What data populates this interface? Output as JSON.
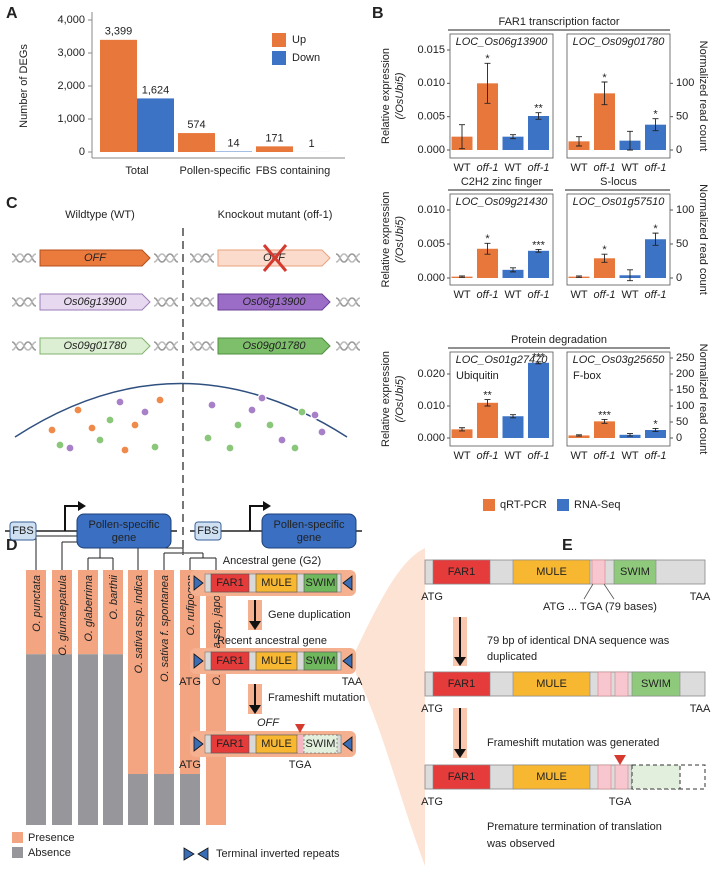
{
  "panel_labels": [
    "A",
    "B",
    "C",
    "D",
    "E"
  ],
  "chart_data": [
    {
      "type": "bar",
      "ylabel": "Number of DEGs",
      "categories": [
        "Total",
        "Pollen-specific",
        "FBS containing"
      ],
      "series": [
        {
          "name": "Up",
          "color": "#e8773b",
          "values": [
            3399,
            574,
            171
          ],
          "value_labels": [
            "3,399",
            "574",
            "171"
          ]
        },
        {
          "name": "Down",
          "color": "#3d73c4",
          "values": [
            1624,
            14,
            1
          ],
          "value_labels": [
            "1,624",
            "14",
            "1"
          ]
        }
      ],
      "ylim": [
        0,
        4000
      ],
      "yticks": [
        0,
        {
          "value": 1000,
          "label": "1,000"
        },
        {
          "value": 2000,
          "label": "2,000"
        },
        {
          "value": 3000,
          "label": "3,000"
        },
        {
          "value": 4000,
          "label": "4,000"
        }
      ]
    },
    {
      "type": "dual_axis_bar",
      "rows": [
        {
          "title": "FAR1 transcription factor",
          "ylabel": [
            "Relative expression",
            "(/OsUbi5)"
          ],
          "y2label": "Normalized read count",
          "ylim": [
            0,
            0.015
          ],
          "yticks": [
            {
              "value": 0,
              "label": "0.000"
            },
            {
              "value": 0.005,
              "label": "0.005"
            },
            {
              "value": 0.01,
              "label": "0.010"
            },
            {
              "value": 0.015,
              "label": "0.015"
            }
          ],
          "y2lim": [
            0,
            150
          ],
          "y2ticks": [
            0,
            50,
            100
          ],
          "subplots": [
            {
              "gene": "LOC_Os06g13900",
              "series": [
                {
                  "name": "qRT-PCR",
                  "color": "#e8773b",
                  "axis": "y",
                  "categories": [
                    "WT",
                    "off-1"
                  ],
                  "values": [
                    0.002,
                    0.01
                  ],
                  "errors": [
                    0.0018,
                    0.003
                  ],
                  "stars": [
                    null,
                    "*"
                  ]
                },
                {
                  "name": "RNA-Seq",
                  "color": "#3d73c4",
                  "axis": "y2",
                  "categories": [
                    "WT",
                    "off-1"
                  ],
                  "values": [
                    20,
                    51
                  ],
                  "errors": [
                    3,
                    5
                  ],
                  "stars": [
                    null,
                    "**"
                  ]
                }
              ]
            },
            {
              "gene": "LOC_Os09g01780",
              "series": [
                {
                  "name": "qRT-PCR",
                  "color": "#e8773b",
                  "axis": "y",
                  "categories": [
                    "WT",
                    "off-1"
                  ],
                  "values": [
                    0.0013,
                    0.0085
                  ],
                  "errors": [
                    0.0007,
                    0.0017
                  ],
                  "stars": [
                    null,
                    "*"
                  ]
                },
                {
                  "name": "RNA-Seq",
                  "color": "#3d73c4",
                  "axis": "y2",
                  "categories": [
                    "WT",
                    "off-1"
                  ],
                  "values": [
                    14,
                    38
                  ],
                  "errors": [
                    14,
                    9
                  ],
                  "stars": [
                    null,
                    "*"
                  ]
                }
              ]
            }
          ]
        },
        {
          "ylabel": [
            "Relative expression",
            "(/OsUbi5)"
          ],
          "y2label": "Normalized read count",
          "ylim": [
            0,
            0.01
          ],
          "yticks": [
            {
              "value": 0,
              "label": "0.000"
            },
            {
              "value": 0.005,
              "label": "0.005"
            },
            {
              "value": 0.01,
              "label": "0.010"
            }
          ],
          "y2lim": [
            0,
            100
          ],
          "y2ticks": [
            0,
            50,
            100
          ],
          "subplots": [
            {
              "title": "C2H2 zinc finger",
              "gene": "LOC_Os09g21430",
              "series": [
                {
                  "name": "qRT-PCR",
                  "color": "#e8773b",
                  "axis": "y",
                  "categories": [
                    "WT",
                    "off-1"
                  ],
                  "values": [
                    0.0002,
                    0.0043
                  ],
                  "errors": [
                    0.0001,
                    0.0008
                  ],
                  "stars": [
                    null,
                    "*"
                  ]
                },
                {
                  "name": "RNA-Seq",
                  "color": "#3d73c4",
                  "axis": "y2",
                  "categories": [
                    "WT",
                    "off-1"
                  ],
                  "values": [
                    12,
                    40
                  ],
                  "errors": [
                    3,
                    2
                  ],
                  "stars": [
                    null,
                    "***"
                  ]
                }
              ]
            },
            {
              "title": "S-locus",
              "gene": "LOC_Os01g57510",
              "series": [
                {
                  "name": "qRT-PCR",
                  "color": "#e8773b",
                  "axis": "y",
                  "categories": [
                    "WT",
                    "off-1"
                  ],
                  "values": [
                    0.0002,
                    0.0029
                  ],
                  "errors": [
                    0.0001,
                    0.0006
                  ],
                  "stars": [
                    null,
                    "*"
                  ]
                },
                {
                  "name": "RNA-Seq",
                  "color": "#3d73c4",
                  "axis": "y2",
                  "categories": [
                    "WT",
                    "off-1"
                  ],
                  "values": [
                    4,
                    57
                  ],
                  "errors": [
                    8,
                    9
                  ],
                  "stars": [
                    null,
                    "*"
                  ]
                }
              ]
            }
          ]
        },
        {
          "title": "Protein degradation",
          "ylabel": [
            "Relative expression",
            "(/OsUbi5)"
          ],
          "y2label": "Normalized read count",
          "ylim": [
            0,
            0.025
          ],
          "yticks": [
            {
              "value": 0,
              "label": "0.000"
            },
            {
              "value": 0.01,
              "label": "0.010"
            },
            {
              "value": 0.02,
              "label": "0.020"
            }
          ],
          "y2lim": [
            0,
            250
          ],
          "y2ticks": [
            0,
            50,
            100,
            150,
            200,
            250
          ],
          "subplots": [
            {
              "gene": "LOC_Os01g27470",
              "note": "Ubiquitin",
              "series": [
                {
                  "name": "qRT-PCR",
                  "color": "#e8773b",
                  "axis": "y",
                  "categories": [
                    "WT",
                    "off-1"
                  ],
                  "values": [
                    0.0027,
                    0.011
                  ],
                  "errors": [
                    0.0005,
                    0.001
                  ],
                  "stars": [
                    null,
                    "**"
                  ]
                },
                {
                  "name": "RNA-Seq",
                  "color": "#3d73c4",
                  "axis": "y2",
                  "categories": [
                    "WT",
                    "off-1"
                  ],
                  "values": [
                    68,
                    235
                  ],
                  "errors": [
                    5,
                    3
                  ],
                  "stars": [
                    null,
                    "***"
                  ]
                }
              ]
            },
            {
              "gene": "LOC_Os03g25650",
              "note": "F-box",
              "series": [
                {
                  "name": "qRT-PCR",
                  "color": "#e8773b",
                  "axis": "y",
                  "categories": [
                    "WT",
                    "off-1"
                  ],
                  "values": [
                    0.0008,
                    0.0052
                  ],
                  "errors": [
                    0.0002,
                    0.0006
                  ],
                  "stars": [
                    null,
                    "***"
                  ]
                },
                {
                  "name": "RNA-Seq",
                  "color": "#3d73c4",
                  "axis": "y2",
                  "categories": [
                    "WT",
                    "off-1"
                  ],
                  "values": [
                    10,
                    25
                  ],
                  "errors": [
                    4,
                    5
                  ],
                  "stars": [
                    null,
                    "*"
                  ]
                }
              ]
            }
          ]
        }
      ]
    },
    {
      "type": "stacked_bar",
      "categories": [
        "O. punctata",
        "O. glumaepatula",
        "O. glaberrima",
        "O. barthii",
        "O. sativa ssp. indica",
        "O. sativa f. spontanea",
        "O. rufipogon",
        "O. sativa ssp. japonica"
      ],
      "series": [
        {
          "name": "Absence",
          "color": "#97979b",
          "values": [
            67,
            67,
            67,
            67,
            20,
            20,
            20,
            0
          ]
        },
        {
          "name": "Presence",
          "color": "#f3a582",
          "values": [
            33,
            33,
            33,
            33,
            80,
            80,
            80,
            100
          ]
        }
      ],
      "ylim": [
        0,
        100
      ]
    }
  ],
  "panel_c": {
    "wt_title": "Wildtype (WT)",
    "ko_title": "Knockout mutant (off-1)",
    "genes": [
      "OFF",
      "Os06g13900",
      "Os09g01780"
    ],
    "promoter": "FBS",
    "target": [
      "Pollen-specific",
      "gene"
    ]
  },
  "panel_d": {
    "ancestral": "Ancestral gene (G2)",
    "step1": "Gene duplication",
    "recent": "Recent ancestral gene",
    "step2": "Frameshift mutation",
    "off": "OFF",
    "domains": [
      "FAR1",
      "MULE",
      "SWIM"
    ],
    "start": "ATG",
    "stop": "TAA",
    "premature_stop": "TGA",
    "tir": "Terminal inverted repeats"
  },
  "panel_e": {
    "domains": [
      "FAR1",
      "MULE",
      "SWIM"
    ],
    "start": "ATG",
    "stop": "TAA",
    "premature_stop": "TGA",
    "insert": "ATG ... TGA (79 bases)",
    "step1": [
      "79 bp of identical DNA sequence was",
      "duplicated"
    ],
    "step2": "Frameshift mutation was generated",
    "result": [
      "Premature termination of translation",
      "was observed"
    ]
  }
}
